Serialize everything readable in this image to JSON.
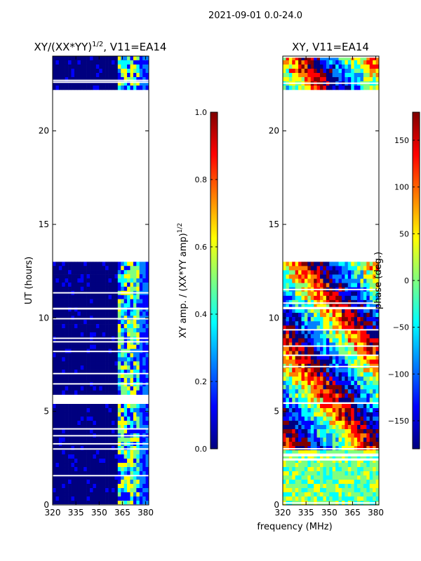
{
  "suptitle": "2021-09-01 0.0-24.0",
  "xlabel": "frequency (MHz)",
  "colors": {
    "jet": [
      "#00007f",
      "#0000ff",
      "#007fff",
      "#00ffff",
      "#7fff7f",
      "#ffff00",
      "#ff7f00",
      "#ff0000",
      "#7f0000"
    ]
  },
  "chart_data": [
    {
      "type": "heatmap",
      "title_main": "XY/(XX*YY)",
      "title_exp": "1/2",
      "title_tail": ", V11=EA14",
      "ylabel": "UT (hours)",
      "xlim": [
        320,
        382
      ],
      "ylim": [
        0,
        24
      ],
      "xticks": [
        "320",
        "335",
        "350",
        "365",
        "380"
      ],
      "xtick_values": [
        320,
        335,
        350,
        365,
        380
      ],
      "yticks": [
        "0",
        "5",
        "10",
        "15",
        "20"
      ],
      "ytick_values": [
        0,
        5,
        10,
        15,
        20
      ],
      "data_intervals_ut": [
        [
          0.0,
          5.4
        ],
        [
          5.9,
          13.0
        ],
        [
          22.2,
          24.0
        ]
      ],
      "colorbar": {
        "label_main": "XY amp. / (XX*YY amp)",
        "label_exp": "1/2",
        "range": [
          0.0,
          1.0
        ],
        "ticks": [
          "0.0",
          "0.2",
          "0.4",
          "0.6",
          "0.8",
          "1.0"
        ],
        "tick_values": [
          0.0,
          0.2,
          0.4,
          0.6,
          0.8,
          1.0
        ]
      }
    },
    {
      "type": "heatmap",
      "title": "XY, V11=EA14",
      "ylabel": "",
      "xlim": [
        320,
        382
      ],
      "ylim": [
        0,
        24
      ],
      "xticks": [
        "320",
        "335",
        "350",
        "365",
        "380"
      ],
      "xtick_values": [
        320,
        335,
        350,
        365,
        380
      ],
      "yticks": [
        "0",
        "5",
        "10",
        "15",
        "20"
      ],
      "ytick_values": [
        0,
        5,
        10,
        15,
        20
      ],
      "data_intervals_ut": [
        [
          0.0,
          5.4
        ],
        [
          5.5,
          13.0
        ],
        [
          22.2,
          24.0
        ]
      ],
      "colorbar": {
        "label": "phase (deg.)",
        "range": [
          -180,
          180
        ],
        "ticks": [
          "−150",
          "−100",
          "−50",
          "0",
          "50",
          "100",
          "150"
        ],
        "tick_values": [
          -150,
          -100,
          -50,
          0,
          50,
          100,
          150
        ]
      }
    }
  ]
}
